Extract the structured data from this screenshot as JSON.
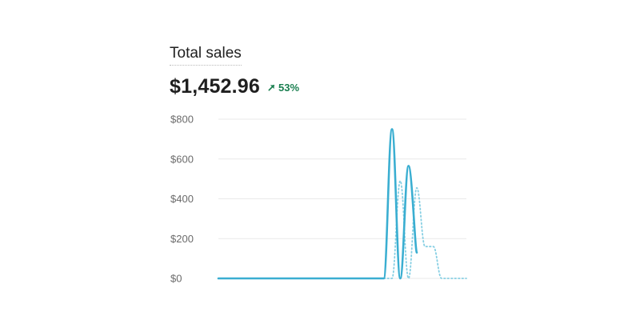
{
  "card": {
    "title": "Total sales",
    "value": "$1,452.96",
    "change": "53%",
    "change_direction": "up",
    "change_color": "#1a7f50"
  },
  "chart_data": {
    "type": "line",
    "title": "",
    "xlabel": "",
    "ylabel": "",
    "ylim": [
      0,
      800
    ],
    "yticks": [
      "$0",
      "$200",
      "$400",
      "$600",
      "$800"
    ],
    "ytick_values": [
      0,
      200,
      400,
      600,
      800
    ],
    "grid": true,
    "x_count": 31,
    "series": [
      {
        "style": "solid",
        "color": "#3aaed1",
        "values": [
          0,
          0,
          0,
          0,
          0,
          0,
          0,
          0,
          0,
          0,
          0,
          0,
          0,
          0,
          0,
          0,
          0,
          0,
          0,
          0,
          0,
          750,
          0,
          565,
          130
        ]
      },
      {
        "style": "dotted",
        "color": "#86cfe3",
        "values": [
          0,
          0,
          0,
          0,
          0,
          0,
          0,
          0,
          0,
          0,
          0,
          0,
          0,
          0,
          0,
          0,
          0,
          0,
          0,
          0,
          0,
          0,
          490,
          0,
          455,
          160,
          160,
          0,
          0,
          0,
          0
        ]
      }
    ]
  }
}
